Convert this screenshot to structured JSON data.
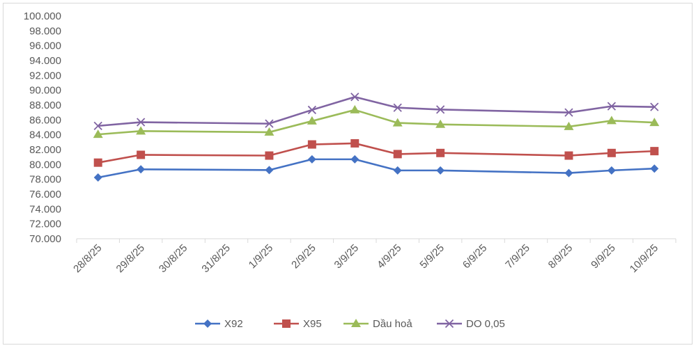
{
  "chart_data": {
    "type": "line",
    "title": "",
    "xlabel": "",
    "ylabel": "",
    "categories": [
      "28/8/25",
      "29/8/25",
      "30/8/25",
      "31/8/25",
      "1/9/25",
      "2/9/25",
      "3/9/25",
      "4/9/25",
      "5/9/25",
      "6/9/25",
      "7/9/25",
      "8/9/25",
      "9/9/25",
      "10/9/25"
    ],
    "ylim": [
      70000,
      100000
    ],
    "ytick_step": 2000,
    "ytick_labels": [
      "70.000",
      "72.000",
      "74.000",
      "76.000",
      "78.000",
      "80.000",
      "82.000",
      "84.000",
      "86.000",
      "88.000",
      "90.000",
      "92.000",
      "94.000",
      "96.000",
      "98.000",
      "100.000"
    ],
    "grid": false,
    "legend_position": "bottom",
    "series": [
      {
        "name": "X92",
        "color": "#4472c4",
        "marker": "diamond",
        "values": [
          78250,
          79350,
          null,
          null,
          79250,
          80700,
          80700,
          79200,
          79200,
          null,
          null,
          78850,
          79200,
          79450
        ]
      },
      {
        "name": "X95",
        "color": "#c0504d",
        "marker": "square",
        "values": [
          80250,
          81300,
          null,
          null,
          81200,
          82700,
          82850,
          81400,
          81550,
          null,
          null,
          81200,
          81550,
          81800
        ]
      },
      {
        "name": "Dầu hoả",
        "color": "#9bbb59",
        "marker": "triangle",
        "values": [
          84050,
          84500,
          null,
          null,
          84350,
          85850,
          87350,
          85600,
          85400,
          null,
          null,
          85100,
          85900,
          85650
        ]
      },
      {
        "name": "DO 0,05",
        "color": "#8064a2",
        "marker": "x",
        "values": [
          85200,
          85700,
          null,
          null,
          85500,
          87350,
          89100,
          87650,
          87400,
          null,
          null,
          87000,
          87850,
          87750
        ]
      }
    ]
  }
}
